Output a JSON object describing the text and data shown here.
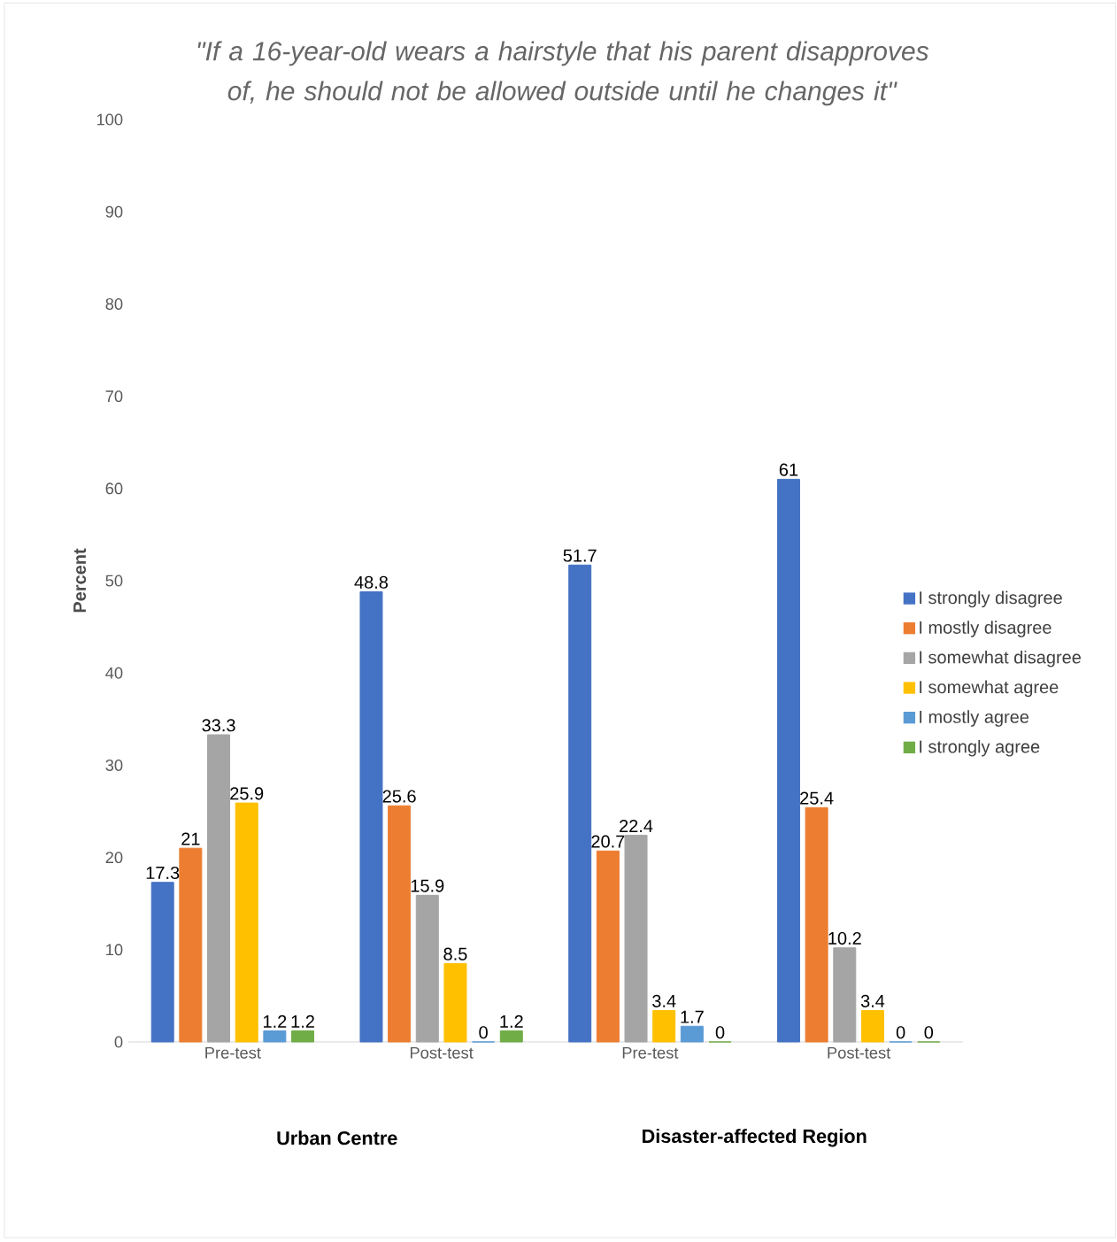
{
  "chart_data": {
    "type": "bar",
    "title": "*\"If a 16-year-old wears a hairstyle that his parent disapproves of, he should not be allowed outside until he changes it\"*",
    "ylabel": "Percent",
    "categories": [
      "Pre-test",
      "Post-test",
      "Pre-test",
      "Post-test"
    ],
    "series": [
      {
        "name": "I strongly disagree",
        "color": "#4472c4",
        "values": [
          17.3,
          48.8,
          51.7,
          61
        ]
      },
      {
        "name": "I mostly disagree",
        "color": "#ed7d31",
        "values": [
          21,
          25.6,
          20.7,
          25.4
        ]
      },
      {
        "name": "I somewhat disagree",
        "color": "#a5a5a5",
        "values": [
          33.3,
          15.9,
          22.4,
          10.2
        ]
      },
      {
        "name": "I somewhat agree",
        "color": "#ffc000",
        "values": [
          25.9,
          8.5,
          3.4,
          3.4
        ]
      },
      {
        "name": "I mostly agree",
        "color": "#5b9bd5",
        "values": [
          1.2,
          0,
          1.7,
          0
        ]
      },
      {
        "name": "I strongly agree",
        "color": "#70ad47",
        "values": [
          1.2,
          1.2,
          0,
          0
        ]
      }
    ],
    "annotations": [
      "Urban Centre",
      "Disaster-affected Region"
    ],
    "ylim": [
      0,
      100
    ],
    "yticks": [
      0,
      10,
      20,
      30,
      40,
      50,
      60,
      70,
      80,
      90,
      100
    ],
    "data_labels": true,
    "legend": "right",
    "grid": false
  }
}
